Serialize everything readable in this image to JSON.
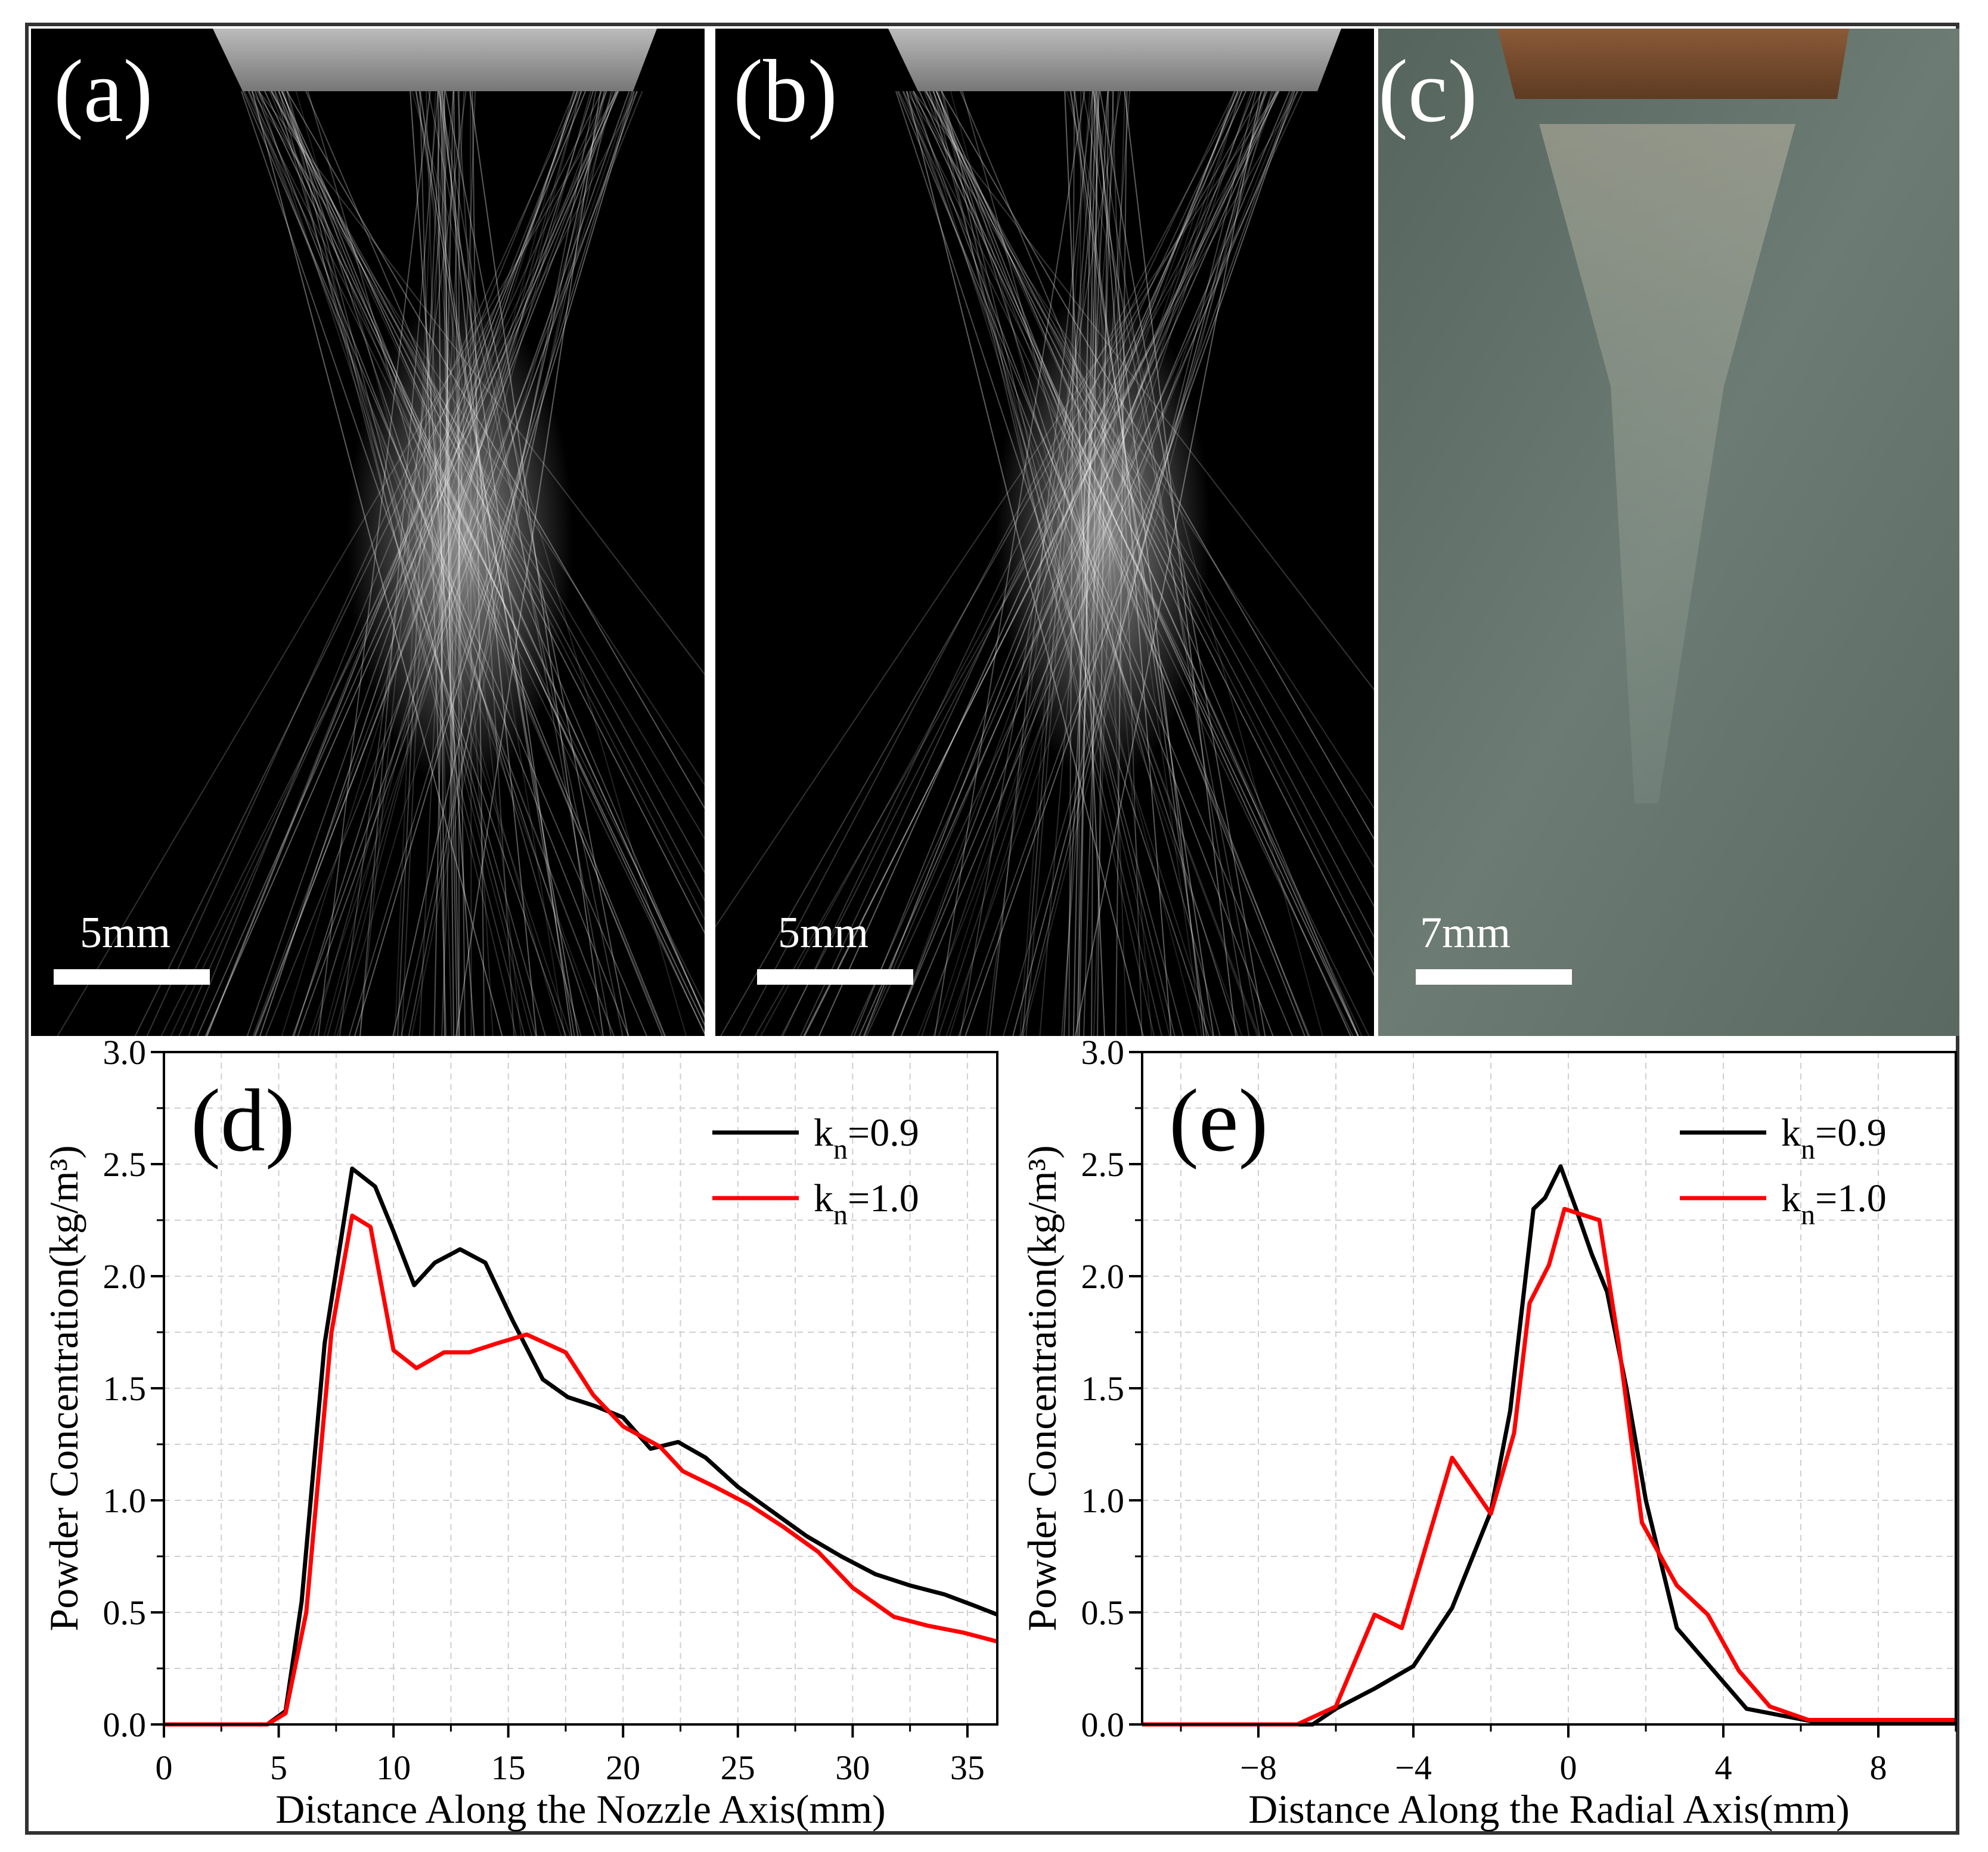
{
  "panels": {
    "a": {
      "label": "(a)",
      "scale": "5mm"
    },
    "b": {
      "label": "(b)",
      "scale": "5mm"
    },
    "c": {
      "label": "(c)",
      "scale": "7mm"
    }
  },
  "chart_data": [
    {
      "panel_label": "(d)",
      "type": "line",
      "xlabel": "Distance Along the Nozzle Axis(mm)",
      "ylabel": "Powder Concentration(kg/m³)",
      "xlim": [
        0,
        36.3
      ],
      "ylim": [
        0,
        3.0
      ],
      "xticks": [
        0,
        5,
        10,
        15,
        20,
        25,
        30,
        35
      ],
      "xtick_labels": [
        "0",
        "5",
        "10",
        "15",
        "20",
        "25",
        "30",
        "35"
      ],
      "yticks": [
        0,
        0.5,
        1.0,
        1.5,
        2.0,
        2.5,
        3.0
      ],
      "ytick_labels": [
        "0.0",
        "0.5",
        "1.0",
        "1.5",
        "2.0",
        "2.5",
        "3.0"
      ],
      "grid": true,
      "legend_position": "top-right",
      "series": [
        {
          "name": "kn=0.9",
          "name_base": "k",
          "name_sub": "n",
          "name_rest": "=0.9",
          "color": "#000000",
          "points": [
            [
              0,
              0
            ],
            [
              4.5,
              0
            ],
            [
              5.3,
              0.06
            ],
            [
              6.0,
              0.55
            ],
            [
              7.0,
              1.7
            ],
            [
              8.2,
              2.48
            ],
            [
              9.2,
              2.4
            ],
            [
              10.0,
              2.2
            ],
            [
              10.9,
              1.96
            ],
            [
              11.8,
              2.06
            ],
            [
              12.9,
              2.12
            ],
            [
              14.0,
              2.06
            ],
            [
              15.2,
              1.8
            ],
            [
              16.5,
              1.54
            ],
            [
              17.6,
              1.46
            ],
            [
              18.8,
              1.42
            ],
            [
              20.0,
              1.37
            ],
            [
              21.2,
              1.23
            ],
            [
              22.4,
              1.26
            ],
            [
              23.6,
              1.19
            ],
            [
              25.0,
              1.06
            ],
            [
              26.5,
              0.95
            ],
            [
              28.0,
              0.84
            ],
            [
              29.5,
              0.75
            ],
            [
              31.0,
              0.67
            ],
            [
              32.5,
              0.62
            ],
            [
              34.0,
              0.58
            ],
            [
              35.3,
              0.53
            ],
            [
              36.3,
              0.49
            ]
          ]
        },
        {
          "name": "kn=1.0",
          "name_base": "k",
          "name_sub": "n",
          "name_rest": "=1.0",
          "color": "#ff0000",
          "points": [
            [
              0,
              0
            ],
            [
              4.5,
              0
            ],
            [
              5.3,
              0.05
            ],
            [
              6.2,
              0.5
            ],
            [
              7.3,
              1.75
            ],
            [
              8.2,
              2.27
            ],
            [
              9.0,
              2.22
            ],
            [
              10.0,
              1.67
            ],
            [
              11.0,
              1.59
            ],
            [
              12.2,
              1.66
            ],
            [
              13.3,
              1.66
            ],
            [
              14.5,
              1.7
            ],
            [
              15.8,
              1.74
            ],
            [
              17.5,
              1.66
            ],
            [
              18.7,
              1.47
            ],
            [
              20.0,
              1.33
            ],
            [
              21.6,
              1.24
            ],
            [
              22.6,
              1.13
            ],
            [
              24.0,
              1.06
            ],
            [
              25.5,
              0.98
            ],
            [
              27.0,
              0.88
            ],
            [
              28.5,
              0.77
            ],
            [
              30.0,
              0.61
            ],
            [
              31.8,
              0.48
            ],
            [
              33.3,
              0.44
            ],
            [
              34.8,
              0.41
            ],
            [
              36.3,
              0.37
            ]
          ]
        }
      ]
    },
    {
      "panel_label": "(e)",
      "type": "line",
      "xlabel": "Distance Along the Radial Axis(mm)",
      "ylabel": "Powder Concentration(kg/m³)",
      "xlim": [
        -11,
        10
      ],
      "ylim": [
        0,
        3.0
      ],
      "xticks": [
        -8,
        -4,
        0,
        4,
        8
      ],
      "xtick_labels": [
        "−8",
        "−4",
        "0",
        "4",
        "8"
      ],
      "yticks": [
        0,
        0.5,
        1.0,
        1.5,
        2.0,
        2.5,
        3.0
      ],
      "ytick_labels": [
        "0.0",
        "0.5",
        "1.0",
        "1.5",
        "2.0",
        "2.5",
        "3.0"
      ],
      "grid": true,
      "legend_position": "top-right",
      "series": [
        {
          "name": "kn=0.9",
          "name_base": "k",
          "name_sub": "n",
          "name_rest": "=0.9",
          "color": "#000000",
          "points": [
            [
              -11,
              0
            ],
            [
              -6.6,
              0
            ],
            [
              -6.0,
              0.07
            ],
            [
              -5.0,
              0.16
            ],
            [
              -4.0,
              0.26
            ],
            [
              -3.0,
              0.52
            ],
            [
              -2.0,
              0.95
            ],
            [
              -1.5,
              1.4
            ],
            [
              -0.9,
              2.3
            ],
            [
              -0.6,
              2.35
            ],
            [
              -0.2,
              2.49
            ],
            [
              0.2,
              2.3
            ],
            [
              0.6,
              2.1
            ],
            [
              1.0,
              1.93
            ],
            [
              1.5,
              1.5
            ],
            [
              2.0,
              1.0
            ],
            [
              2.8,
              0.43
            ],
            [
              3.6,
              0.27
            ],
            [
              4.6,
              0.07
            ],
            [
              5.5,
              0.04
            ],
            [
              6.4,
              0.01
            ],
            [
              10,
              0.01
            ]
          ]
        },
        {
          "name": "kn=1.0",
          "name_base": "k",
          "name_sub": "n",
          "name_rest": "=1.0",
          "color": "#ff0000",
          "points": [
            [
              -11,
              0
            ],
            [
              -7.0,
              0
            ],
            [
              -6.0,
              0.08
            ],
            [
              -5.0,
              0.49
            ],
            [
              -4.3,
              0.43
            ],
            [
              -3.0,
              1.19
            ],
            [
              -2.0,
              0.94
            ],
            [
              -1.4,
              1.3
            ],
            [
              -1.0,
              1.88
            ],
            [
              -0.5,
              2.05
            ],
            [
              -0.1,
              2.3
            ],
            [
              0.8,
              2.25
            ],
            [
              1.3,
              1.7
            ],
            [
              1.9,
              0.9
            ],
            [
              2.8,
              0.62
            ],
            [
              3.6,
              0.49
            ],
            [
              4.4,
              0.24
            ],
            [
              5.2,
              0.08
            ],
            [
              6.2,
              0.02
            ],
            [
              10,
              0.02
            ]
          ]
        }
      ]
    }
  ]
}
